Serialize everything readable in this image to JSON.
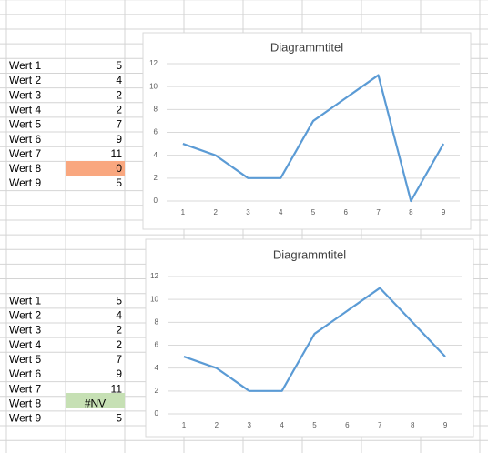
{
  "table1": {
    "rows": [
      {
        "label": "Wert 1",
        "value": 5
      },
      {
        "label": "Wert 2",
        "value": 4
      },
      {
        "label": "Wert 3",
        "value": 2
      },
      {
        "label": "Wert 4",
        "value": 2
      },
      {
        "label": "Wert 5",
        "value": 7
      },
      {
        "label": "Wert 6",
        "value": 9
      },
      {
        "label": "Wert 7",
        "value": 11
      },
      {
        "label": "Wert 8",
        "value": 0
      },
      {
        "label": "Wert 9",
        "value": 5
      }
    ]
  },
  "table2": {
    "rows": [
      {
        "label": "Wert 1",
        "value": 5
      },
      {
        "label": "Wert 2",
        "value": 4
      },
      {
        "label": "Wert 3",
        "value": 2
      },
      {
        "label": "Wert 4",
        "value": 2
      },
      {
        "label": "Wert 5",
        "value": 7
      },
      {
        "label": "Wert 6",
        "value": 9
      },
      {
        "label": "Wert 7",
        "value": 11
      },
      {
        "label": "Wert 8",
        "value": "#NV"
      },
      {
        "label": "Wert 9",
        "value": 5
      }
    ]
  },
  "chart_data": [
    {
      "type": "line",
      "title": "Diagrammtitel",
      "categories": [
        "1",
        "2",
        "3",
        "4",
        "5",
        "6",
        "7",
        "8",
        "9"
      ],
      "values": [
        5,
        4,
        2,
        2,
        7,
        9,
        11,
        0,
        5
      ],
      "color": "#5b9bd5",
      "ylim": [
        0,
        12
      ],
      "yticks": [
        0,
        2,
        4,
        6,
        8,
        10,
        12
      ],
      "grid": true
    },
    {
      "type": "line",
      "title": "Diagrammtitel",
      "categories": [
        "1",
        "2",
        "3",
        "4",
        "5",
        "6",
        "7",
        "8",
        "9"
      ],
      "values": [
        5,
        4,
        2,
        2,
        7,
        9,
        11,
        null,
        5
      ],
      "color": "#5b9bd5",
      "span_gaps": true,
      "ylim": [
        0,
        12
      ],
      "yticks": [
        0,
        2,
        4,
        6,
        8,
        10,
        12
      ],
      "grid": true
    }
  ]
}
